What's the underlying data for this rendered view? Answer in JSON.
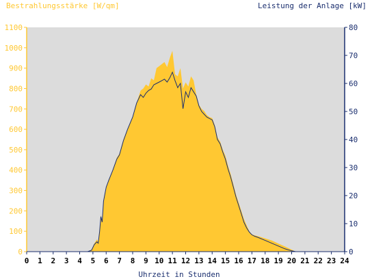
{
  "chart_data": {
    "type": "area",
    "ylabel_left": "Bestrahlungsstärke [W/qm]",
    "ylabel_right": "Leistung der Anlage [kW]",
    "xlabel": "Uhrzeit in Stunden",
    "x_ticks": [
      "0",
      "1",
      "2",
      "3",
      "4",
      "5",
      "6",
      "7",
      "8",
      "9",
      "10",
      "11",
      "12",
      "13",
      "14",
      "15",
      "16",
      "17",
      "18",
      "19",
      "20",
      "21",
      "22",
      "23",
      "24"
    ],
    "y_left_ticks": [
      "0",
      "100",
      "200",
      "300",
      "400",
      "500",
      "600",
      "700",
      "800",
      "900",
      "1000",
      "1100"
    ],
    "y_right_ticks": [
      "0",
      "10",
      "20",
      "30",
      "40",
      "50",
      "60",
      "70",
      "80"
    ],
    "xlim": [
      0,
      24
    ],
    "ylim_left": [
      0,
      1100
    ],
    "ylim_right": [
      0,
      80
    ],
    "grid": false,
    "colors": {
      "irradiance": "#ffc832",
      "power": "#1a2e6e",
      "left_axis": "#ffc832",
      "right_axis": "#1a2e6e",
      "plot_bg": "#dcdcdc"
    },
    "series": [
      {
        "name": "Bestrahlungsstärke [W/qm]",
        "axis": "left",
        "x": [
          0,
          4.6,
          4.9,
          5.1,
          5.3,
          5.4,
          5.5,
          5.6,
          5.7,
          5.8,
          6.0,
          6.2,
          6.5,
          6.8,
          7.0,
          7.3,
          7.6,
          8.0,
          8.3,
          8.6,
          8.8,
          9.0,
          9.2,
          9.4,
          9.6,
          9.8,
          10.0,
          10.2,
          10.4,
          10.6,
          10.8,
          11.0,
          11.2,
          11.4,
          11.6,
          11.8,
          12.0,
          12.2,
          12.4,
          12.6,
          12.8,
          13.0,
          13.2,
          13.4,
          13.6,
          13.8,
          14.0,
          14.2,
          14.4,
          14.6,
          14.8,
          15.0,
          15.2,
          15.4,
          15.6,
          15.8,
          16.0,
          16.2,
          16.4,
          16.6,
          16.8,
          17.0,
          17.2,
          17.5,
          18.0,
          18.5,
          19.0,
          19.5,
          20.0,
          20.3,
          24
        ],
        "values": [
          0,
          0,
          10,
          40,
          60,
          50,
          100,
          180,
          150,
          250,
          320,
          350,
          400,
          460,
          480,
          550,
          600,
          660,
          730,
          790,
          800,
          820,
          810,
          850,
          840,
          900,
          910,
          920,
          930,
          905,
          950,
          985,
          870,
          860,
          900,
          800,
          830,
          810,
          860,
          840,
          770,
          720,
          700,
          690,
          670,
          660,
          655,
          620,
          560,
          540,
          500,
          470,
          420,
          380,
          330,
          280,
          240,
          200,
          160,
          130,
          100,
          85,
          80,
          75,
          65,
          55,
          40,
          25,
          10,
          0,
          0
        ]
      },
      {
        "name": "Leistung der Anlage [kW]",
        "axis": "right",
        "x": [
          0,
          4.6,
          4.9,
          5.1,
          5.3,
          5.4,
          5.5,
          5.6,
          5.7,
          5.8,
          6.0,
          6.2,
          6.5,
          6.8,
          7.0,
          7.3,
          7.6,
          8.0,
          8.3,
          8.6,
          8.8,
          9.0,
          9.2,
          9.4,
          9.6,
          9.8,
          10.0,
          10.2,
          10.4,
          10.6,
          10.8,
          11.0,
          11.2,
          11.4,
          11.6,
          11.8,
          12.0,
          12.2,
          12.4,
          12.6,
          12.8,
          13.0,
          13.2,
          13.4,
          13.6,
          13.8,
          14.0,
          14.2,
          14.4,
          14.6,
          14.8,
          15.0,
          15.2,
          15.4,
          15.6,
          15.8,
          16.0,
          16.2,
          16.4,
          16.6,
          16.8,
          17.0,
          17.2,
          17.5,
          18.0,
          18.5,
          19.0,
          19.5,
          20.0,
          20.3,
          24
        ],
        "values": [
          0,
          0,
          0.5,
          2.5,
          3.5,
          3.0,
          7.0,
          12.5,
          10.5,
          18.0,
          23.0,
          25.5,
          29.0,
          33.0,
          34.5,
          39.5,
          43.5,
          48.0,
          53.0,
          56.0,
          55.0,
          56.5,
          57.5,
          58.0,
          59.5,
          60.0,
          60.5,
          61.0,
          61.5,
          60.5,
          62.0,
          64.0,
          61.0,
          58.5,
          60.0,
          51.0,
          57.0,
          55.0,
          58.5,
          57.0,
          55.5,
          52.0,
          50.0,
          49.0,
          48.0,
          47.5,
          47.0,
          44.5,
          40.0,
          38.5,
          35.5,
          33.0,
          29.5,
          26.5,
          23.0,
          19.5,
          16.5,
          13.5,
          10.5,
          8.5,
          7.0,
          6.0,
          5.5,
          5.0,
          4.0,
          3.0,
          2.0,
          1.0,
          0.3,
          0,
          0
        ]
      }
    ]
  }
}
